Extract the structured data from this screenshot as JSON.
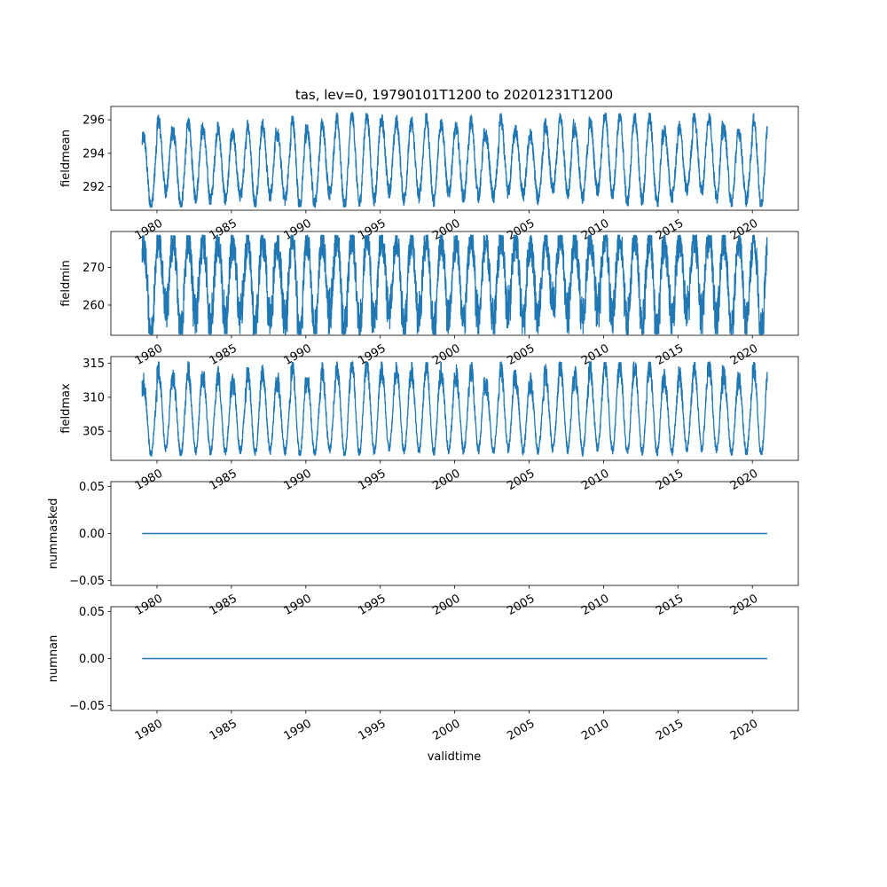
{
  "figure": {
    "title": "tas, lev=0, 19790101T1200 to 20201231T1200",
    "xlabel": "validtime"
  },
  "colors": {
    "series": "#1f77b4",
    "axes": "#000000"
  },
  "x_tick_labels": [
    "1980",
    "1985",
    "1990",
    "1995",
    "2000",
    "2005",
    "2010",
    "2015",
    "2020"
  ],
  "chart_data": [
    {
      "type": "line",
      "title": "tas, lev=0, 19790101T1200 to 20201231T1200",
      "ylabel": "fieldmean",
      "xlabel": "",
      "x_range": [
        "1979-01-01",
        "2020-12-31"
      ],
      "ylim": [
        290.6,
        296.8
      ],
      "yticks": [
        "292",
        "294",
        "296"
      ],
      "seasonal_cycle": {
        "min_range": [
          290.8,
          291.8
        ],
        "max_range": [
          295.0,
          296.4
        ],
        "peak_month_fraction": 0.1
      },
      "series": [
        {
          "x": [
            "1979-01-01",
            "2020-12-31"
          ],
          "y_min": 290.8,
          "y_max": 296.4
        }
      ]
    },
    {
      "type": "line",
      "title": "",
      "ylabel": "fieldmin",
      "xlabel": "",
      "x_range": [
        "1979-01-01",
        "2020-12-31"
      ],
      "ylim": [
        252.0,
        279.5
      ],
      "yticks": [
        "260",
        "270"
      ],
      "seasonal_cycle": {
        "min_range": [
          255.5,
          262.0
        ],
        "max_range": [
          276.0,
          278.5
        ],
        "peak_month_fraction": 0.1
      },
      "series": [
        {
          "x": [
            "1979-01-01",
            "2020-12-31"
          ],
          "y_min": 252.3,
          "y_max": 278.5
        }
      ]
    },
    {
      "type": "line",
      "title": "",
      "ylabel": "fieldmax",
      "xlabel": "",
      "x_range": [
        "1979-01-01",
        "2020-12-31"
      ],
      "ylim": [
        300.7,
        316.0
      ],
      "yticks": [
        "305",
        "310",
        "315"
      ],
      "seasonal_cycle": {
        "min_range": [
          301.5,
          302.5
        ],
        "max_range": [
          312.0,
          315.2
        ],
        "peak_month_fraction": 0.1
      },
      "series": [
        {
          "x": [
            "1979-01-01",
            "2020-12-31"
          ],
          "y_min": 301.4,
          "y_max": 315.2
        }
      ]
    },
    {
      "type": "line",
      "title": "",
      "ylabel": "nummasked",
      "xlabel": "",
      "x_range": [
        "1979-01-01",
        "2020-12-31"
      ],
      "ylim": [
        -0.055,
        0.055
      ],
      "yticks": [
        "−0.05",
        "0.00",
        "0.05"
      ],
      "series": [
        {
          "x": [
            "1979-01-01",
            "2020-12-31"
          ],
          "y": [
            0.0,
            0.0
          ]
        }
      ]
    },
    {
      "type": "line",
      "title": "",
      "ylabel": "numnan",
      "xlabel": "validtime",
      "x_range": [
        "1979-01-01",
        "2020-12-31"
      ],
      "ylim": [
        -0.055,
        0.055
      ],
      "yticks": [
        "−0.05",
        "0.00",
        "0.05"
      ],
      "series": [
        {
          "x": [
            "1979-01-01",
            "2020-12-31"
          ],
          "y": [
            0.0,
            0.0
          ]
        }
      ]
    }
  ]
}
